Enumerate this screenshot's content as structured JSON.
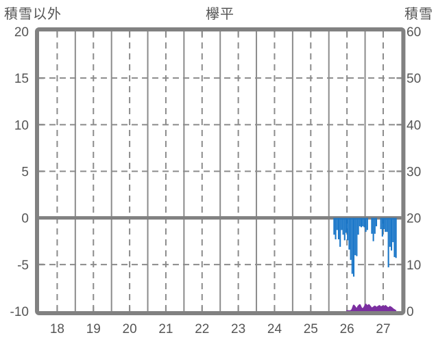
{
  "header": {
    "left_label": "積雪以外",
    "title": "欅平",
    "right_label": "積雪"
  },
  "chart_data": {
    "type": "bar",
    "title": "欅平",
    "left_axis": {
      "label": "積雪以外",
      "min": -10,
      "max": 20,
      "ticks": [
        20,
        15,
        10,
        5,
        0,
        -5,
        -10
      ]
    },
    "right_axis": {
      "label": "積雪",
      "min": 0,
      "max": 60,
      "ticks": [
        60,
        50,
        40,
        30,
        20,
        10,
        0
      ]
    },
    "x_axis": {
      "tick_labels": [
        "18",
        "19",
        "20",
        "21",
        "22",
        "23",
        "24",
        "25",
        "26",
        "27"
      ],
      "hours_per_day": 24
    },
    "grid": {
      "h_dashed_values_left_axis": [
        15,
        10,
        5,
        -5
      ],
      "zero_line_value": 0,
      "v_solid": "day-boundaries",
      "v_dashed": "day-midpoints",
      "legend": "none"
    },
    "series": [
      {
        "name": "temperature-bars",
        "type": "bar",
        "axis": "left",
        "color": "#1976c8",
        "days": [
          {
            "day": "26",
            "hourly": [
              null,
              null,
              null,
              -1.8,
              -2.3,
              -1.3,
              -2.3,
              -3.1,
              -1.3,
              -1.8,
              -2.4,
              -1.6,
              -2.4,
              -3.4,
              -4.5,
              -6.0,
              -6.3,
              -4.0,
              -4.1,
              -1.8,
              -0.9,
              -1.0,
              -0.9,
              -1.0
            ]
          },
          {
            "day": "27",
            "hourly": [
              -1.5,
              -1.3,
              null,
              null,
              -1.7,
              -2.5,
              -1.7,
              -0.9,
              null,
              null,
              -1.2,
              -2.0,
              -1.2,
              -1.5,
              -1.5,
              -5.3,
              -3.1,
              -3.5,
              -2.6,
              -4.2,
              -4.3,
              null,
              null,
              null
            ]
          }
        ]
      },
      {
        "name": "snow-depth-line",
        "type": "area-line",
        "axis": "right",
        "color": "#7b2fa0",
        "days": [
          {
            "day": "26",
            "hourly": [
              null,
              null,
              null,
              null,
              null,
              null,
              null,
              null,
              null,
              null,
              null,
              0,
              0,
              0,
              0,
              0.3,
              1.2,
              0.8,
              0.3,
              1.0,
              1.3,
              0.6,
              0.4,
              0.8
            ]
          },
          {
            "day": "27",
            "hourly": [
              1.4,
              1.0,
              1.3,
              0.9,
              0.5,
              0.8,
              1.0,
              0.7,
              0.9,
              1.1,
              0.8,
              1.0,
              0.9,
              1.1,
              0.8,
              0.6,
              0.9,
              0.7,
              0.4,
              0.2,
              0,
              null,
              null,
              null
            ]
          }
        ]
      }
    ],
    "colors": {
      "background": "#ffffff",
      "frame": "#818181",
      "grid": "#8b8b8b",
      "text": "#555555",
      "bar": "#1976c8",
      "snow": "#7b2fa0"
    }
  }
}
